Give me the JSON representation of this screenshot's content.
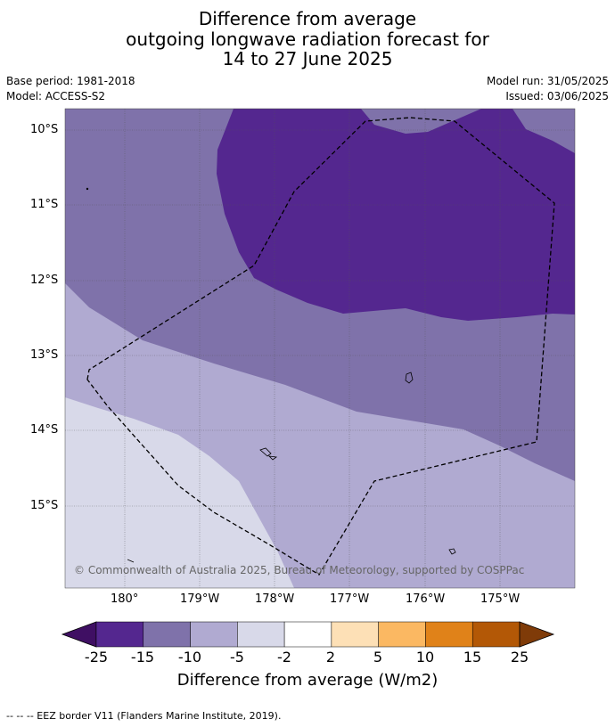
{
  "title": {
    "line1": "Difference from average",
    "line2": "outgoing longwave radiation forecast for",
    "line3": "14 to 27 June 2025"
  },
  "meta": {
    "base_period": "Base period: 1981-2018",
    "model": "Model: ACCESS-S2",
    "model_run": "Model run: 31/05/2025",
    "issued": "Issued: 03/06/2025"
  },
  "map": {
    "lat_labels": [
      "10°S",
      "11°S",
      "12°S",
      "13°S",
      "14°S",
      "15°S"
    ],
    "lon_labels": [
      "180°",
      "179°W",
      "178°W",
      "177°W",
      "176°W",
      "175°W"
    ],
    "copyright": "© Commonwealth of Australia 2025, Bureau of Meteorology, supported by COSPPac",
    "colors": {
      "lt_-15": "#54278f",
      "-15_-10": "#7f72aa",
      "-10_-5": "#b0aad1",
      "-5_-2": "#d8d9e9"
    }
  },
  "colorbar": {
    "labels": [
      "-25",
      "-15",
      "-10",
      "-5",
      "-2",
      "2",
      "5",
      "10",
      "15",
      "25"
    ],
    "colors": [
      "#3f0f63",
      "#54278f",
      "#7f72aa",
      "#b0aad1",
      "#d8d9e9",
      "#ffffff",
      "#fde0b6",
      "#fbb862",
      "#e08219",
      "#b35806",
      "#7f3b08"
    ],
    "title": "Difference from average (W/m2)"
  },
  "footnote": "--  --  -- EEZ border V11 (Flanders Marine Institute, 2019)."
}
